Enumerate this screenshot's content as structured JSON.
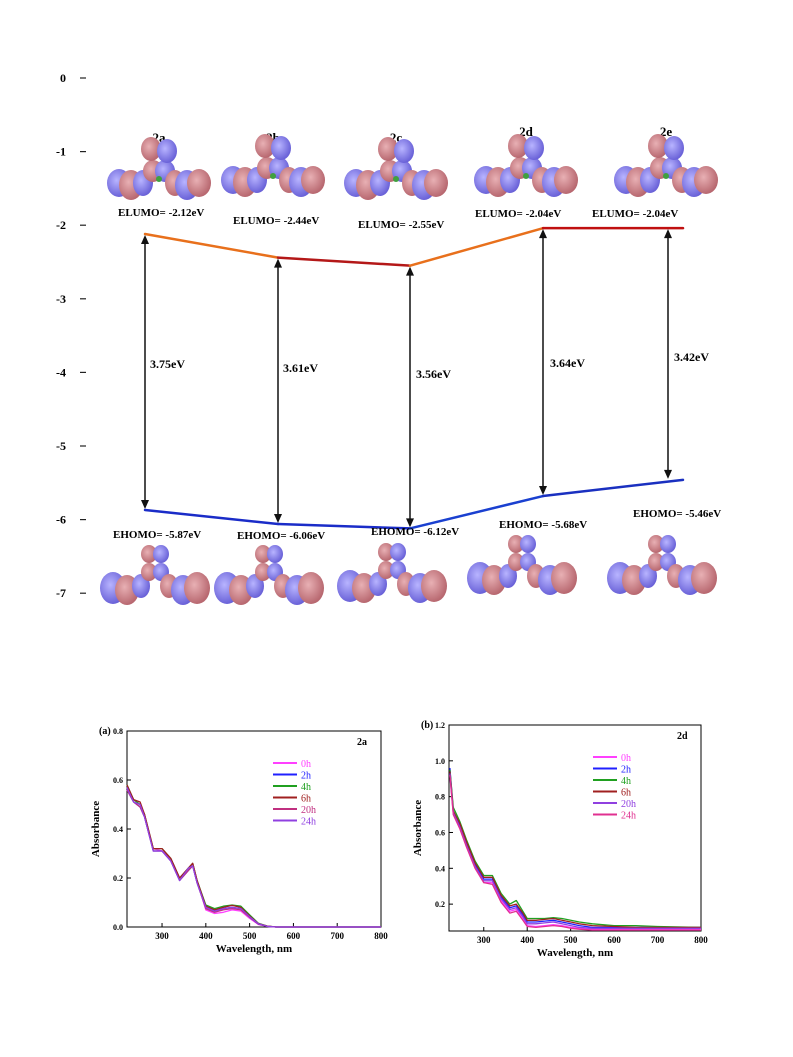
{
  "chart_data": [
    {
      "type": "line",
      "yaxis": {
        "ticks": [
          "0",
          "-1",
          "-2",
          "-3",
          "-4",
          "-5",
          "-6",
          "-7"
        ],
        "range": [
          -7,
          0
        ]
      },
      "compounds": [
        {
          "name": "2a",
          "lumo": -2.12,
          "homo": -5.87,
          "lumo_label": "ELUMO= -2.12eV",
          "homo_label": "EHOMO= -5.87eV",
          "gap_label": "3.75eV"
        },
        {
          "name": "2b",
          "lumo": -2.44,
          "homo": -6.06,
          "lumo_label": "ELUMO= -2.44eV",
          "homo_label": "EHOMO= -6.06eV",
          "gap_label": "3.61eV"
        },
        {
          "name": "2c",
          "lumo": -2.55,
          "homo": -6.12,
          "lumo_label": "ELUMO= -2.55eV",
          "homo_label": "EHOMO= -6.12eV",
          "gap_label": "3.56eV"
        },
        {
          "name": "2d",
          "lumo": -2.04,
          "homo": -5.68,
          "lumo_label": "ELUMO= -2.04eV",
          "homo_label": "EHOMO= -5.68eV",
          "gap_label": "3.64eV"
        },
        {
          "name": "2e",
          "lumo": -2.04,
          "homo": -5.46,
          "lumo_label": "ELUMO= -2.04eV",
          "homo_label": "EHOMO= -5.46eV",
          "gap_label": "3.42eV"
        }
      ]
    },
    {
      "type": "line",
      "panel_label": "(a)",
      "sample": "2a",
      "xlabel": "Wavelength, nm",
      "ylabel": "Absorbance",
      "xlim": [
        220,
        800
      ],
      "ylim": [
        0.0,
        0.8
      ],
      "xticks": [
        "300",
        "400",
        "500",
        "600",
        "700",
        "800"
      ],
      "yticks": [
        "0.0",
        "0.2",
        "0.4",
        "0.6",
        "0.8"
      ],
      "series": [
        {
          "name": "0h",
          "color": "#ff40ff",
          "x": [
            220,
            235,
            250,
            260,
            280,
            300,
            320,
            340,
            360,
            370,
            380,
            400,
            420,
            440,
            460,
            480,
            500,
            520,
            540,
            560,
            600,
            700,
            800
          ],
          "y": [
            0.57,
            0.52,
            0.5,
            0.46,
            0.32,
            0.31,
            0.28,
            0.2,
            0.24,
            0.26,
            0.19,
            0.07,
            0.055,
            0.06,
            0.07,
            0.065,
            0.035,
            0.01,
            0.003,
            0.0,
            0.0,
            0.0,
            0.0
          ]
        },
        {
          "name": "2h",
          "color": "#2020ff",
          "x": [
            220,
            235,
            250,
            260,
            280,
            300,
            320,
            340,
            360,
            370,
            380,
            400,
            420,
            440,
            460,
            480,
            500,
            520,
            540,
            560,
            600,
            700,
            800
          ],
          "y": [
            0.56,
            0.51,
            0.49,
            0.45,
            0.31,
            0.31,
            0.27,
            0.19,
            0.23,
            0.25,
            0.18,
            0.08,
            0.065,
            0.075,
            0.08,
            0.075,
            0.04,
            0.012,
            0.003,
            0.0,
            0.0,
            0.0,
            0.0
          ]
        },
        {
          "name": "4h",
          "color": "#20a020",
          "x": [
            220,
            235,
            250,
            260,
            280,
            300,
            320,
            340,
            360,
            370,
            380,
            400,
            420,
            440,
            460,
            480,
            500,
            520,
            540,
            560,
            600,
            700,
            800
          ],
          "y": [
            0.58,
            0.52,
            0.5,
            0.46,
            0.32,
            0.32,
            0.28,
            0.2,
            0.24,
            0.26,
            0.19,
            0.09,
            0.075,
            0.085,
            0.09,
            0.085,
            0.05,
            0.015,
            0.004,
            0.0,
            0.0,
            0.0,
            0.0
          ]
        },
        {
          "name": "6h",
          "color": "#a02020",
          "x": [
            220,
            235,
            250,
            260,
            280,
            300,
            320,
            340,
            360,
            370,
            380,
            400,
            420,
            440,
            460,
            480,
            500,
            520,
            540,
            560,
            600,
            700,
            800
          ],
          "y": [
            0.58,
            0.52,
            0.51,
            0.46,
            0.32,
            0.32,
            0.28,
            0.2,
            0.24,
            0.26,
            0.19,
            0.085,
            0.07,
            0.08,
            0.088,
            0.08,
            0.045,
            0.014,
            0.004,
            0.0,
            0.0,
            0.0,
            0.0
          ]
        },
        {
          "name": "20h",
          "color": "#c03080",
          "x": [
            220,
            235,
            250,
            260,
            280,
            300,
            320,
            340,
            360,
            370,
            380,
            400,
            420,
            440,
            460,
            480,
            500,
            520,
            540,
            560,
            600,
            700,
            800
          ],
          "y": [
            0.56,
            0.51,
            0.49,
            0.45,
            0.31,
            0.31,
            0.27,
            0.19,
            0.23,
            0.25,
            0.18,
            0.075,
            0.06,
            0.07,
            0.075,
            0.07,
            0.04,
            0.012,
            0.003,
            0.0,
            0.0,
            0.0,
            0.0
          ]
        },
        {
          "name": "24h",
          "color": "#9040e0",
          "x": [
            220,
            235,
            250,
            260,
            280,
            300,
            320,
            340,
            360,
            370,
            380,
            400,
            420,
            440,
            460,
            480,
            500,
            520,
            540,
            560,
            600,
            700,
            800
          ],
          "y": [
            0.57,
            0.51,
            0.5,
            0.45,
            0.31,
            0.31,
            0.27,
            0.19,
            0.24,
            0.25,
            0.18,
            0.08,
            0.065,
            0.075,
            0.08,
            0.075,
            0.042,
            0.013,
            0.003,
            0.0,
            0.0,
            0.0,
            0.0
          ]
        }
      ]
    },
    {
      "type": "line",
      "panel_label": "(b)",
      "sample": "2d",
      "xlabel": "Wavelength, nm",
      "ylabel": "Absorbance",
      "xlim": [
        220,
        800
      ],
      "ylim": [
        0.05,
        1.2
      ],
      "xticks": [
        "300",
        "400",
        "500",
        "600",
        "700",
        "800"
      ],
      "yticks": [
        "0.2",
        "0.4",
        "0.6",
        "0.8",
        "1.0",
        "1.2"
      ],
      "series": [
        {
          "name": "0h",
          "color": "#ff40ff",
          "x": [
            222,
            230,
            245,
            260,
            280,
            300,
            320,
            340,
            360,
            375,
            390,
            400,
            420,
            440,
            460,
            480,
            500,
            520,
            550,
            600,
            650,
            700,
            800
          ],
          "y": [
            0.92,
            0.7,
            0.62,
            0.52,
            0.4,
            0.32,
            0.32,
            0.22,
            0.16,
            0.17,
            0.12,
            0.08,
            0.075,
            0.08,
            0.085,
            0.08,
            0.07,
            0.065,
            0.06,
            0.06,
            0.06,
            0.06,
            0.06
          ]
        },
        {
          "name": "2h",
          "color": "#2020ff",
          "x": [
            222,
            230,
            245,
            260,
            280,
            300,
            320,
            340,
            360,
            375,
            390,
            400,
            420,
            440,
            460,
            480,
            500,
            520,
            550,
            600,
            650,
            700,
            800
          ],
          "y": [
            0.96,
            0.72,
            0.64,
            0.54,
            0.42,
            0.34,
            0.34,
            0.24,
            0.18,
            0.19,
            0.14,
            0.1,
            0.1,
            0.105,
            0.11,
            0.1,
            0.09,
            0.08,
            0.07,
            0.07,
            0.07,
            0.07,
            0.07
          ]
        },
        {
          "name": "4h",
          "color": "#20a020",
          "x": [
            222,
            230,
            245,
            260,
            280,
            300,
            320,
            340,
            360,
            375,
            390,
            400,
            420,
            440,
            460,
            480,
            500,
            520,
            550,
            600,
            650,
            700,
            800
          ],
          "y": [
            0.95,
            0.74,
            0.66,
            0.56,
            0.44,
            0.36,
            0.36,
            0.26,
            0.2,
            0.22,
            0.16,
            0.12,
            0.12,
            0.12,
            0.125,
            0.12,
            0.11,
            0.1,
            0.09,
            0.08,
            0.08,
            0.075,
            0.07
          ]
        },
        {
          "name": "6h",
          "color": "#a02020",
          "x": [
            222,
            230,
            245,
            260,
            280,
            300,
            320,
            340,
            360,
            375,
            390,
            400,
            420,
            440,
            460,
            480,
            500,
            520,
            550,
            600,
            650,
            700,
            800
          ],
          "y": [
            0.94,
            0.72,
            0.65,
            0.55,
            0.43,
            0.35,
            0.35,
            0.25,
            0.19,
            0.2,
            0.15,
            0.11,
            0.11,
            0.115,
            0.12,
            0.11,
            0.1,
            0.09,
            0.08,
            0.075,
            0.07,
            0.07,
            0.07
          ]
        },
        {
          "name": "20h",
          "color": "#9040e0",
          "x": [
            222,
            230,
            245,
            260,
            280,
            300,
            320,
            340,
            360,
            375,
            390,
            400,
            420,
            440,
            460,
            480,
            500,
            520,
            550,
            600,
            650,
            700,
            800
          ],
          "y": [
            0.93,
            0.71,
            0.63,
            0.53,
            0.41,
            0.33,
            0.33,
            0.23,
            0.17,
            0.18,
            0.13,
            0.09,
            0.09,
            0.095,
            0.1,
            0.09,
            0.08,
            0.07,
            0.065,
            0.065,
            0.065,
            0.065,
            0.065
          ]
        },
        {
          "name": "24h",
          "color": "#e03090",
          "x": [
            222,
            230,
            245,
            260,
            280,
            300,
            320,
            340,
            360,
            375,
            390,
            400,
            420,
            440,
            460,
            480,
            500,
            520,
            550,
            600,
            650,
            700,
            800
          ],
          "y": [
            0.92,
            0.7,
            0.62,
            0.52,
            0.4,
            0.32,
            0.31,
            0.21,
            0.15,
            0.16,
            0.11,
            0.075,
            0.07,
            0.075,
            0.08,
            0.075,
            0.065,
            0.06,
            0.055,
            0.055,
            0.055,
            0.055,
            0.055
          ]
        }
      ]
    }
  ]
}
